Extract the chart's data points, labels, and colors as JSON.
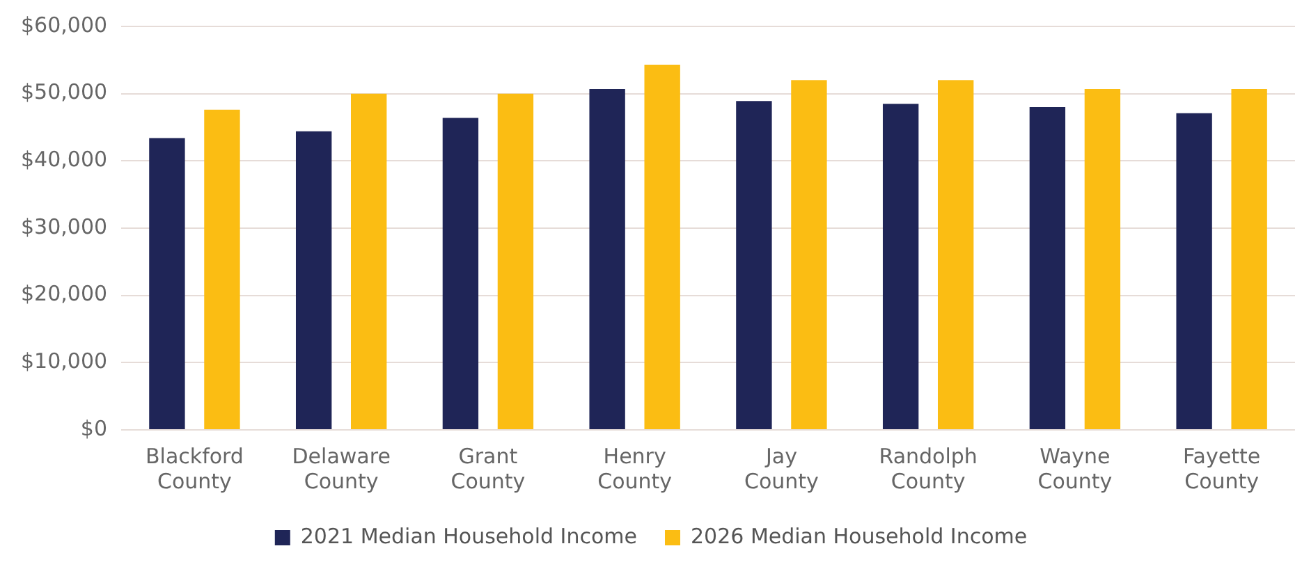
{
  "chart_data": {
    "type": "bar",
    "categories": [
      [
        "Blackford",
        "County"
      ],
      [
        "Delaware",
        "County"
      ],
      [
        "Grant",
        "County"
      ],
      [
        "Henry",
        "County"
      ],
      [
        "Jay",
        "County"
      ],
      [
        "Randolph",
        "County"
      ],
      [
        "Wayne",
        "County"
      ],
      [
        "Fayette",
        "County"
      ]
    ],
    "series": [
      {
        "name": "2021 Median Household Income",
        "color": "#1f2557",
        "values": [
          43400,
          44400,
          46400,
          50700,
          48900,
          48500,
          48000,
          47100
        ]
      },
      {
        "name": "2026 Median Household Income",
        "color": "#fbbd13",
        "values": [
          47600,
          50000,
          50000,
          54300,
          52000,
          52000,
          50700,
          50700
        ]
      }
    ],
    "ylim": [
      0,
      60000
    ],
    "yticks": [
      {
        "value": 0,
        "label": "$0"
      },
      {
        "value": 10000,
        "label": "$10,000"
      },
      {
        "value": 20000,
        "label": "$20,000"
      },
      {
        "value": 30000,
        "label": "$30,000"
      },
      {
        "value": 40000,
        "label": "$40,000"
      },
      {
        "value": 50000,
        "label": "$50,000"
      },
      {
        "value": 60000,
        "label": "$60,000"
      }
    ],
    "grid": "y",
    "legend": "bottom"
  }
}
